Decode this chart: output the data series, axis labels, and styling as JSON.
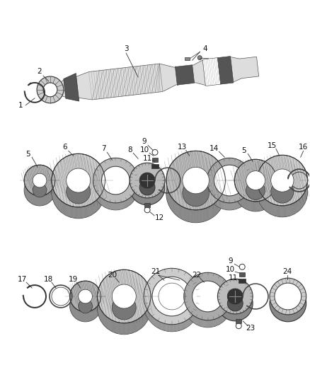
{
  "bg_color": "#ffffff",
  "fig_width": 4.38,
  "fig_height": 5.33,
  "dpi": 100,
  "line_color": "#333333",
  "gear_fill": "#cccccc",
  "gear_dark": "#444444",
  "gear_mid": "#888888",
  "white": "#ffffff"
}
